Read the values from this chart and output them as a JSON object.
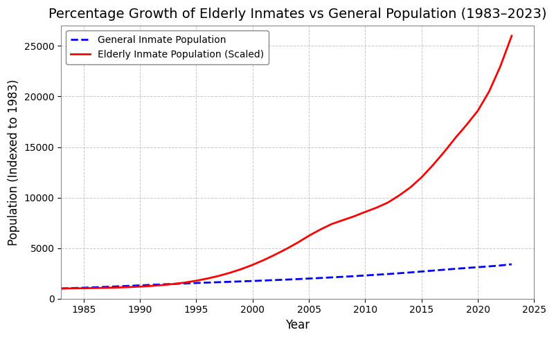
{
  "title": "Percentage Growth of Elderly Inmates vs General Population (1983–2023)",
  "xlabel": "Year",
  "ylabel": "Population (Indexed to 1983)",
  "xlim": [
    1983,
    2025
  ],
  "ylim": [
    0,
    27000
  ],
  "yticks": [
    0,
    5000,
    10000,
    15000,
    20000,
    25000
  ],
  "xticks": [
    1985,
    1990,
    1995,
    2000,
    2005,
    2010,
    2015,
    2020,
    2025
  ],
  "general_years": [
    1983,
    1984,
    1985,
    1986,
    1987,
    1988,
    1989,
    1990,
    1991,
    1992,
    1993,
    1994,
    1995,
    1996,
    1997,
    1998,
    1999,
    2000,
    2001,
    2002,
    2003,
    2004,
    2005,
    2006,
    2007,
    2008,
    2009,
    2010,
    2011,
    2012,
    2013,
    2014,
    2015,
    2016,
    2017,
    2018,
    2019,
    2020,
    2021,
    2022,
    2023
  ],
  "general_values": [
    1000,
    1040,
    1080,
    1120,
    1165,
    1210,
    1260,
    1310,
    1360,
    1410,
    1455,
    1500,
    1545,
    1585,
    1625,
    1665,
    1705,
    1745,
    1790,
    1835,
    1880,
    1930,
    1985,
    2040,
    2100,
    2160,
    2220,
    2290,
    2360,
    2430,
    2510,
    2590,
    2680,
    2770,
    2860,
    2950,
    3030,
    3110,
    3190,
    3280,
    3400
  ],
  "elderly_years": [
    1983,
    1984,
    1985,
    1986,
    1987,
    1988,
    1989,
    1990,
    1991,
    1992,
    1993,
    1994,
    1995,
    1996,
    1997,
    1998,
    1999,
    2000,
    2001,
    2002,
    2003,
    2004,
    2005,
    2006,
    2007,
    2008,
    2009,
    2010,
    2011,
    2012,
    2013,
    2014,
    2015,
    2016,
    2017,
    2018,
    2019,
    2020,
    2021,
    2022,
    2023
  ],
  "elderly_values": [
    1000,
    1010,
    1025,
    1045,
    1070,
    1100,
    1140,
    1190,
    1255,
    1340,
    1450,
    1590,
    1770,
    1990,
    2250,
    2560,
    2920,
    3340,
    3820,
    4350,
    4920,
    5540,
    6220,
    6830,
    7370,
    7760,
    8140,
    8580,
    9000,
    9500,
    10200,
    11000,
    12000,
    13200,
    14500,
    15900,
    17200,
    18600,
    20500,
    23000,
    26000
  ],
  "general_color": "#0000ff",
  "elderly_color": "#ff0000",
  "general_label": "General Inmate Population",
  "elderly_label": "Elderly Inmate Population (Scaled)",
  "bg_color": "#ffffff",
  "grid_color": "#b0b0b0",
  "title_fontsize": 14,
  "label_fontsize": 12,
  "tick_fontsize": 10,
  "legend_fontsize": 10
}
